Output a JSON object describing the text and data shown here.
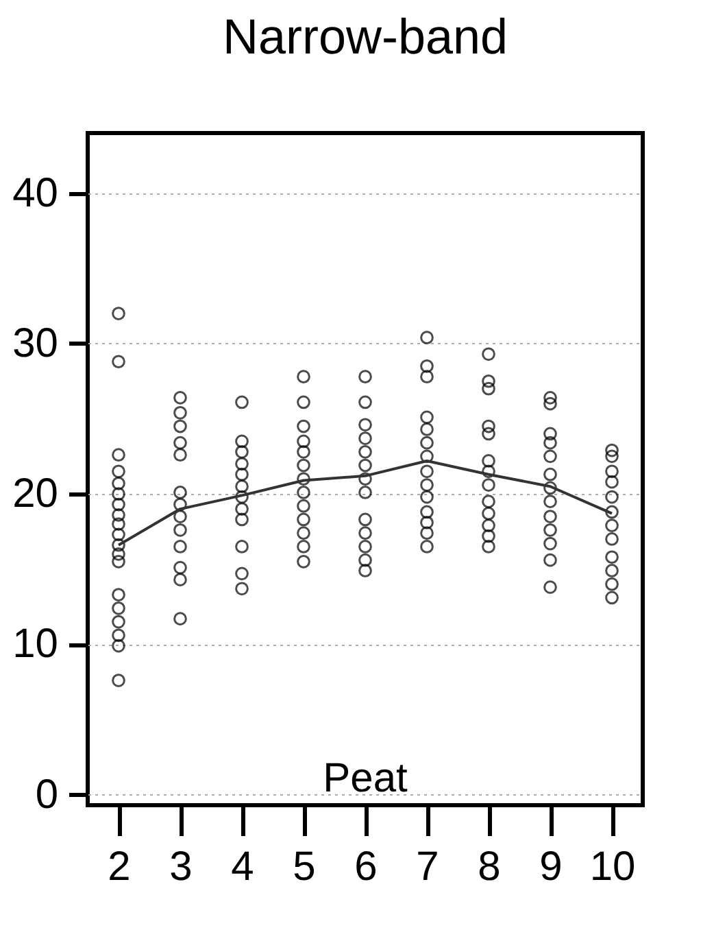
{
  "chart_data": {
    "type": "scatter",
    "title": "Narrow-band",
    "xlim": [
      1.5,
      10.5
    ],
    "xticks": [
      2,
      3,
      4,
      5,
      6,
      7,
      8,
      9,
      10
    ],
    "ylim": [
      -0.7,
      44
    ],
    "yticks": [
      0,
      10,
      20,
      30,
      40
    ],
    "grid": "y",
    "marker": "circle",
    "annotations": [
      "Peat"
    ],
    "series": [
      {
        "type": "scatter",
        "color": "#000000",
        "x": [
          2,
          2,
          2,
          2,
          2,
          2,
          2,
          2,
          2,
          2,
          2,
          2,
          2,
          2,
          2,
          2,
          2,
          2,
          2,
          3,
          3,
          3,
          3,
          3,
          3,
          3,
          3,
          3,
          3,
          3,
          3,
          3,
          4,
          4,
          4,
          4,
          4,
          4,
          4,
          4,
          4,
          4,
          4,
          4,
          5,
          5,
          5,
          5,
          5,
          5,
          5,
          5,
          5,
          5,
          5,
          5,
          5,
          6,
          6,
          6,
          6,
          6,
          6,
          6,
          6,
          6,
          6,
          6,
          6,
          6,
          7,
          7,
          7,
          7,
          7,
          7,
          7,
          7,
          7,
          7,
          7,
          7,
          7,
          7,
          8,
          8,
          8,
          8,
          8,
          8,
          8,
          8,
          8,
          8,
          8,
          8,
          8,
          9,
          9,
          9,
          9,
          9,
          9,
          9,
          9,
          9,
          9,
          9,
          9,
          9,
          10,
          10,
          10,
          10,
          10,
          10,
          10,
          10,
          10,
          10,
          10,
          10
        ],
        "values": [
          32.0,
          28.8,
          22.6,
          21.5,
          20.7,
          20.0,
          19.3,
          18.6,
          18.0,
          17.3,
          16.6,
          16.0,
          15.5,
          13.3,
          12.4,
          11.5,
          10.6,
          9.9,
          7.6,
          26.4,
          25.4,
          24.5,
          23.4,
          22.6,
          20.1,
          19.3,
          18.5,
          17.6,
          16.5,
          15.1,
          14.3,
          11.7,
          26.1,
          23.5,
          22.8,
          22.0,
          21.3,
          20.5,
          19.8,
          19.0,
          18.3,
          16.5,
          14.7,
          13.7,
          27.8,
          26.1,
          24.5,
          23.5,
          22.8,
          21.9,
          21.0,
          20.1,
          19.2,
          18.3,
          17.4,
          16.5,
          15.5,
          27.8,
          26.1,
          24.6,
          23.7,
          22.8,
          21.9,
          21.0,
          20.1,
          18.3,
          17.4,
          16.5,
          15.6,
          14.9,
          30.4,
          28.5,
          27.8,
          25.1,
          24.3,
          23.4,
          22.5,
          21.5,
          20.6,
          19.8,
          18.8,
          18.1,
          17.4,
          16.5,
          29.3,
          27.5,
          27.0,
          24.5,
          24.0,
          22.2,
          21.5,
          20.6,
          19.5,
          18.7,
          17.9,
          17.2,
          16.5,
          26.4,
          26.0,
          24.0,
          23.4,
          22.5,
          21.3,
          20.4,
          19.5,
          18.5,
          17.6,
          16.7,
          15.6,
          13.8,
          22.9,
          22.5,
          21.5,
          20.8,
          19.8,
          18.8,
          17.9,
          17.0,
          15.8,
          14.9,
          14.0,
          13.1
        ]
      },
      {
        "type": "line",
        "color": "#333333",
        "marker": "none",
        "x": [
          2,
          3,
          4,
          5,
          6,
          7,
          8,
          9,
          10
        ],
        "values": [
          16.6,
          19.0,
          19.9,
          20.9,
          21.2,
          22.2,
          21.3,
          20.5,
          18.7
        ]
      }
    ]
  }
}
